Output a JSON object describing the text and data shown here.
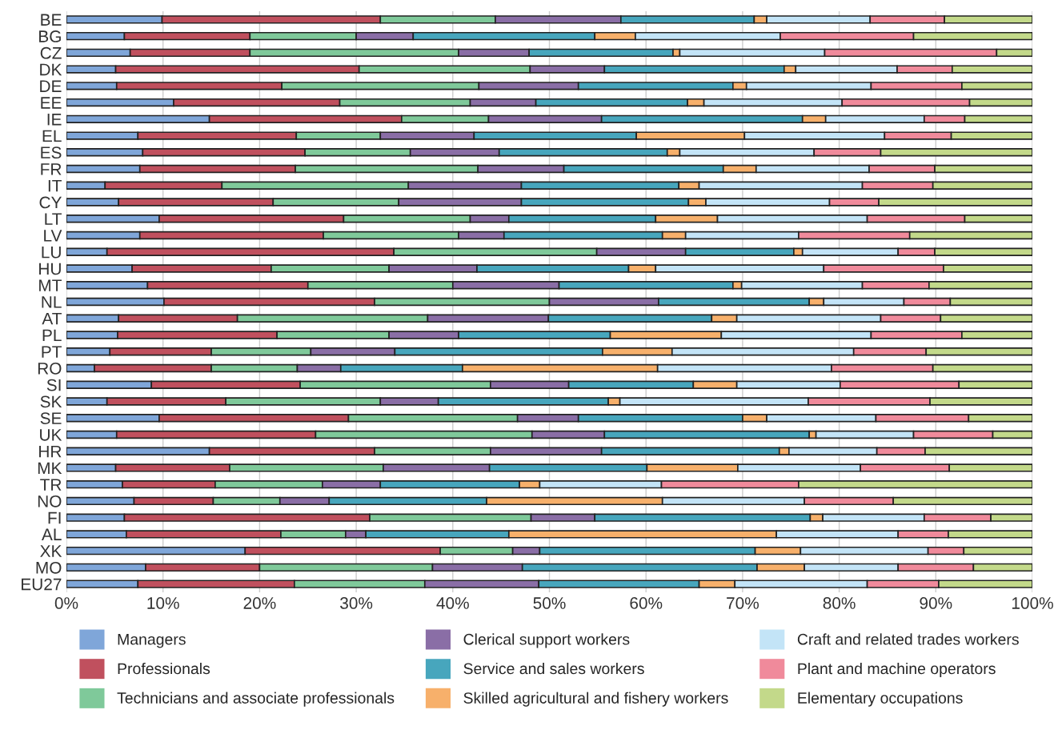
{
  "chart_data": {
    "type": "bar",
    "orientation": "horizontal",
    "stacked": true,
    "categories": [
      "BE",
      "BG",
      "CZ",
      "DK",
      "DE",
      "EE",
      "IE",
      "EL",
      "ES",
      "FR",
      "IT",
      "CY",
      "LT",
      "LV",
      "LU",
      "HU",
      "MT",
      "NL",
      "AT",
      "PL",
      "PT",
      "RO",
      "SI",
      "SK",
      "SE",
      "UK",
      "HR",
      "MK",
      "TR",
      "NO",
      "FI",
      "AL",
      "XK",
      "MO",
      "EU27"
    ],
    "series": [
      {
        "name": "Managers",
        "color": "#7fa6d9",
        "values": [
          9.9,
          6.0,
          6.6,
          5.1,
          5.2,
          11.1,
          14.8,
          7.4,
          7.9,
          7.6,
          4.0,
          5.4,
          9.6,
          7.6,
          4.2,
          6.8,
          8.4,
          10.1,
          5.4,
          5.3,
          4.5,
          2.9,
          8.8,
          4.2,
          9.6,
          5.2,
          14.8,
          5.1,
          5.8,
          7.0,
          6.0,
          6.2,
          18.5,
          8.2,
          7.4
        ]
      },
      {
        "name": "Professionals",
        "color": "#c0505e",
        "values": [
          22.6,
          13.0,
          12.4,
          25.2,
          17.1,
          17.2,
          19.9,
          16.4,
          16.8,
          16.1,
          12.1,
          16.0,
          19.1,
          19.0,
          29.7,
          14.4,
          16.6,
          21.8,
          12.3,
          16.5,
          10.5,
          12.1,
          15.4,
          12.3,
          19.6,
          20.6,
          17.1,
          11.8,
          9.6,
          8.2,
          25.4,
          16.0,
          20.2,
          11.8,
          16.2
        ]
      },
      {
        "name": "Technicians and associate professionals",
        "color": "#7fc99a",
        "values": [
          11.9,
          11.0,
          21.6,
          17.7,
          20.4,
          13.5,
          9.0,
          8.7,
          10.9,
          18.9,
          19.3,
          13.0,
          13.1,
          14.0,
          21.0,
          12.2,
          15.0,
          18.1,
          19.7,
          11.6,
          10.3,
          8.9,
          19.7,
          16.0,
          17.5,
          22.4,
          12.0,
          15.9,
          11.1,
          6.9,
          16.7,
          6.7,
          7.5,
          17.9,
          13.5
        ]
      },
      {
        "name": "Clerical support workers",
        "color": "#8a6ea6",
        "values": [
          13.0,
          5.9,
          7.3,
          7.7,
          10.3,
          6.8,
          11.7,
          9.7,
          9.2,
          8.9,
          11.7,
          12.7,
          4.0,
          4.7,
          9.2,
          9.1,
          11.0,
          11.3,
          12.5,
          7.2,
          8.7,
          4.5,
          8.1,
          6.0,
          6.3,
          7.5,
          11.5,
          11.0,
          6.0,
          5.1,
          6.6,
          2.1,
          2.8,
          9.3,
          11.8
        ]
      },
      {
        "name": "Service and sales workers",
        "color": "#47a6bd",
        "values": [
          13.8,
          18.8,
          14.9,
          18.6,
          16.0,
          15.7,
          20.8,
          16.8,
          17.4,
          16.5,
          16.3,
          17.3,
          15.2,
          16.4,
          11.2,
          15.7,
          18.0,
          15.6,
          16.9,
          15.7,
          21.5,
          12.6,
          12.9,
          17.6,
          17.0,
          21.2,
          18.4,
          16.3,
          14.4,
          16.3,
          22.3,
          14.8,
          22.3,
          24.3,
          16.6
        ]
      },
      {
        "name": "Skilled agricultural and fishery workers",
        "color": "#f7b06b",
        "values": [
          1.3,
          4.2,
          0.7,
          1.2,
          1.4,
          1.7,
          2.4,
          11.2,
          1.3,
          3.4,
          2.1,
          1.8,
          6.4,
          2.4,
          0.9,
          2.8,
          0.9,
          1.5,
          2.6,
          11.5,
          7.2,
          20.2,
          4.5,
          1.2,
          2.5,
          0.7,
          1.0,
          9.4,
          2.1,
          18.2,
          1.3,
          27.7,
          4.7,
          4.9,
          3.7
        ]
      },
      {
        "name": "Craft and related trades workers",
        "color": "#c3e4f7",
        "values": [
          10.7,
          15.0,
          15.0,
          10.5,
          12.9,
          14.3,
          10.2,
          14.5,
          13.9,
          11.7,
          16.9,
          12.8,
          15.5,
          11.7,
          9.9,
          17.4,
          12.5,
          8.3,
          14.9,
          15.5,
          18.8,
          18.0,
          10.7,
          19.5,
          11.3,
          10.1,
          9.1,
          12.7,
          12.6,
          14.7,
          10.5,
          12.6,
          13.2,
          9.7,
          13.7
        ]
      },
      {
        "name": "Plant and machine operators",
        "color": "#f08a9b",
        "values": [
          7.7,
          13.8,
          17.8,
          5.7,
          9.4,
          13.2,
          4.2,
          6.9,
          6.9,
          6.8,
          7.3,
          5.1,
          10.1,
          11.5,
          3.8,
          12.4,
          6.9,
          4.8,
          6.2,
          9.4,
          7.5,
          10.5,
          12.3,
          12.6,
          9.6,
          8.2,
          5.0,
          9.2,
          14.2,
          9.2,
          6.9,
          5.2,
          3.7,
          7.8,
          7.4
        ]
      },
      {
        "name": "Elementary occupations",
        "color": "#c3d98a",
        "values": [
          9.1,
          12.3,
          3.7,
          8.3,
          7.3,
          6.5,
          7.0,
          8.4,
          15.7,
          10.1,
          10.3,
          15.9,
          7.0,
          12.7,
          10.1,
          9.2,
          10.7,
          8.5,
          9.5,
          7.3,
          11.0,
          10.3,
          7.6,
          10.6,
          6.6,
          4.1,
          11.1,
          8.6,
          24.2,
          14.4,
          4.3,
          8.7,
          7.1,
          6.1,
          9.7
        ]
      }
    ],
    "xlim": [
      0,
      100
    ],
    "xticks": [
      {
        "value": 0,
        "label": "0%"
      },
      {
        "value": 10,
        "label": "10%"
      },
      {
        "value": 20,
        "label": "20%"
      },
      {
        "value": 30,
        "label": "30%"
      },
      {
        "value": 40,
        "label": "40%"
      },
      {
        "value": 50,
        "label": "50%"
      },
      {
        "value": 60,
        "label": "60%"
      },
      {
        "value": 70,
        "label": "70%"
      },
      {
        "value": 80,
        "label": "80%"
      },
      {
        "value": 90,
        "label": "90%"
      },
      {
        "value": 100,
        "label": "100%"
      }
    ],
    "grid": "x",
    "legend": "bottom"
  }
}
